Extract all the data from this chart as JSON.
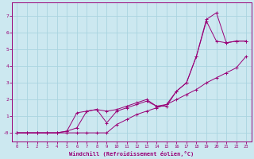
{
  "xlabel": "Windchill (Refroidissement éolien,°C)",
  "background_color": "#cce8f0",
  "grid_color": "#aad4e0",
  "line_color": "#990077",
  "xlim": [
    -0.5,
    23.5
  ],
  "ylim": [
    -0.5,
    7.8
  ],
  "xticks": [
    0,
    1,
    2,
    3,
    4,
    5,
    6,
    7,
    8,
    9,
    10,
    11,
    12,
    13,
    14,
    15,
    16,
    17,
    18,
    19,
    20,
    21,
    22,
    23
  ],
  "yticks": [
    0,
    1,
    2,
    3,
    4,
    5,
    6,
    7
  ],
  "ytick_labels": [
    "-0",
    "1",
    "2",
    "3",
    "4",
    "5",
    "6",
    "7"
  ],
  "line1_x": [
    0,
    1,
    2,
    3,
    4,
    5,
    6,
    7,
    8,
    9,
    10,
    11,
    12,
    13,
    14,
    15,
    16,
    17,
    18,
    19,
    20,
    21,
    22,
    23
  ],
  "line1_y": [
    0.0,
    0.0,
    0.0,
    0.0,
    0.0,
    0.0,
    0.0,
    0.0,
    0.0,
    0.0,
    0.5,
    0.8,
    1.1,
    1.3,
    1.5,
    1.7,
    2.0,
    2.3,
    2.6,
    3.0,
    3.3,
    3.6,
    3.9,
    4.6
  ],
  "line2_x": [
    0,
    1,
    2,
    3,
    4,
    5,
    6,
    7,
    8,
    9,
    10,
    11,
    12,
    13,
    14,
    15,
    16,
    17,
    18,
    19,
    20,
    21,
    22,
    23
  ],
  "line2_y": [
    0.0,
    0.0,
    0.0,
    0.0,
    0.0,
    0.1,
    1.2,
    1.3,
    1.4,
    0.6,
    1.3,
    1.5,
    1.7,
    1.9,
    1.6,
    1.6,
    2.5,
    3.0,
    4.6,
    6.8,
    7.2,
    5.4,
    5.5,
    5.5
  ],
  "line3_x": [
    0,
    1,
    2,
    3,
    4,
    5,
    6,
    7,
    8,
    9,
    10,
    11,
    12,
    13,
    14,
    15,
    16,
    17,
    18,
    19,
    20,
    21,
    22,
    23
  ],
  "line3_y": [
    0.0,
    0.0,
    0.0,
    0.0,
    0.0,
    0.1,
    0.3,
    1.3,
    1.4,
    1.3,
    1.4,
    1.6,
    1.8,
    2.0,
    1.6,
    1.7,
    2.5,
    3.0,
    4.6,
    6.7,
    5.5,
    5.4,
    5.5,
    5.5
  ]
}
